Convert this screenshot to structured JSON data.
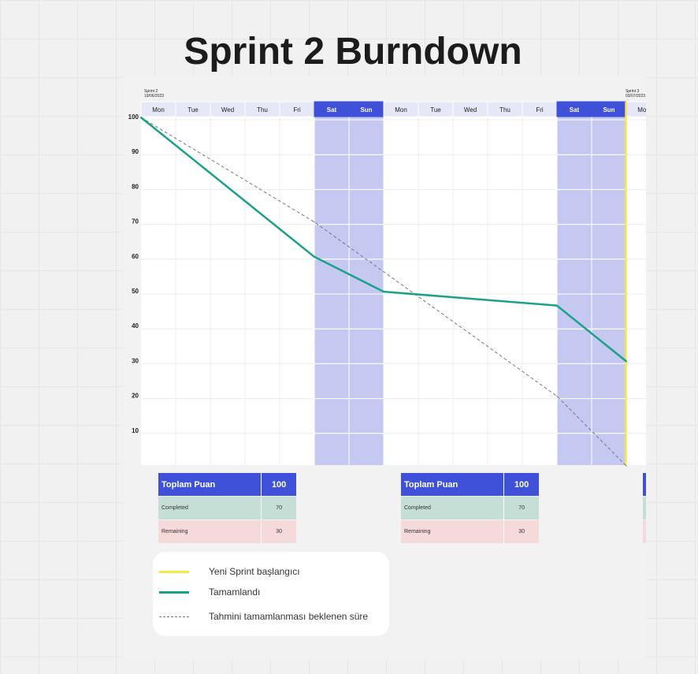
{
  "title": "Sprint 2 Burndown",
  "sprint_start": {
    "name": "Sprint 2",
    "date": "19/06/2023"
  },
  "sprint_next": {
    "name": "Sprint 3",
    "date": "03/07/2023"
  },
  "days": [
    "Mon",
    "Tue",
    "Wed",
    "Thu",
    "Fri",
    "Sat",
    "Sun",
    "Mon",
    "Tue",
    "Wed",
    "Thu",
    "Fri",
    "Sat",
    "Sun",
    "Mon"
  ],
  "weekend_indices": [
    5,
    6,
    12,
    13
  ],
  "y_ticks": [
    100,
    90,
    80,
    70,
    60,
    50,
    40,
    30,
    20,
    10
  ],
  "colors": {
    "weekend": "#c5c9f2",
    "weekend_header": "#3f51d8",
    "header": "#e6e8f8",
    "completed_line": "#1aa187",
    "sprint_start_line": "#f6e84a",
    "estimate_line": "#777777"
  },
  "chart_data": {
    "type": "line",
    "x_labels": [
      "Mon",
      "Tue",
      "Wed",
      "Thu",
      "Fri",
      "Sat",
      "Sun",
      "Mon",
      "Tue",
      "Wed",
      "Thu",
      "Fri",
      "Sat",
      "Sun",
      "Mon"
    ],
    "ylim": [
      0,
      100
    ],
    "series": [
      {
        "name": "Tamamlandı",
        "x": [
          0,
          5,
          7,
          12,
          14
        ],
        "y": [
          100,
          60,
          50,
          46,
          30
        ]
      },
      {
        "name": "Tahmini tamamlanması beklenen süre",
        "x": [
          0,
          5,
          12,
          14
        ],
        "y": [
          100,
          70,
          20,
          0
        ]
      }
    ],
    "new_sprint_marker_x": 14
  },
  "tables": [
    {
      "header_label": "Toplam Puan",
      "header_value": "100",
      "completed_label": "Completed",
      "completed_value": "70",
      "remaining_label": "Remaining",
      "remaining_value": "30"
    },
    {
      "header_label": "Toplam Puan",
      "header_value": "100",
      "completed_label": "Completed",
      "completed_value": "70",
      "remaining_label": "Remaining",
      "remaining_value": "30"
    }
  ],
  "legend": {
    "sprint_start": "Yeni Sprint başlangıcı",
    "completed": "Tamamlandı",
    "estimate": "Tahmini tamamlanması beklenen süre"
  }
}
